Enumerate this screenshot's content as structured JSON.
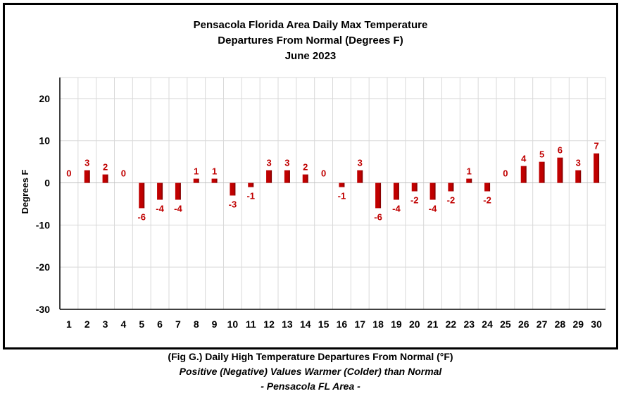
{
  "chart_data": {
    "type": "bar",
    "title_lines": [
      "Pensacola Florida Area Daily Max Temperature",
      "Departures From Normal (Degrees F)",
      "June 2023"
    ],
    "xlabel": "",
    "ylabel": "Degrees F",
    "categories": [
      "1",
      "2",
      "3",
      "4",
      "5",
      "6",
      "7",
      "8",
      "9",
      "10",
      "11",
      "12",
      "13",
      "14",
      "15",
      "16",
      "17",
      "18",
      "19",
      "20",
      "21",
      "22",
      "23",
      "24",
      "25",
      "26",
      "27",
      "28",
      "29",
      "30"
    ],
    "values": [
      0,
      3,
      2,
      0,
      -6,
      -4,
      -4,
      1,
      1,
      -3,
      -1,
      3,
      3,
      2,
      0,
      -1,
      3,
      -6,
      -4,
      -2,
      -4,
      -2,
      1,
      -2,
      0,
      4,
      5,
      6,
      3,
      7
    ],
    "ylim": [
      -30,
      25
    ],
    "yticks": [
      "20",
      "10",
      "0",
      "-10",
      "-20",
      "-30"
    ],
    "grid": true,
    "legend": "none",
    "colors": {
      "bar": "#c00000",
      "bar_dark": "#7a0000",
      "label": "#c00000",
      "grid": "#d9d9d9"
    }
  },
  "caption": {
    "line1": "(Fig G.) Daily High Temperature Departures From Normal (°F)",
    "line2": "Positive (Negative) Values Warmer (Colder) than Normal",
    "line3": "- Pensacola FL Area -"
  }
}
